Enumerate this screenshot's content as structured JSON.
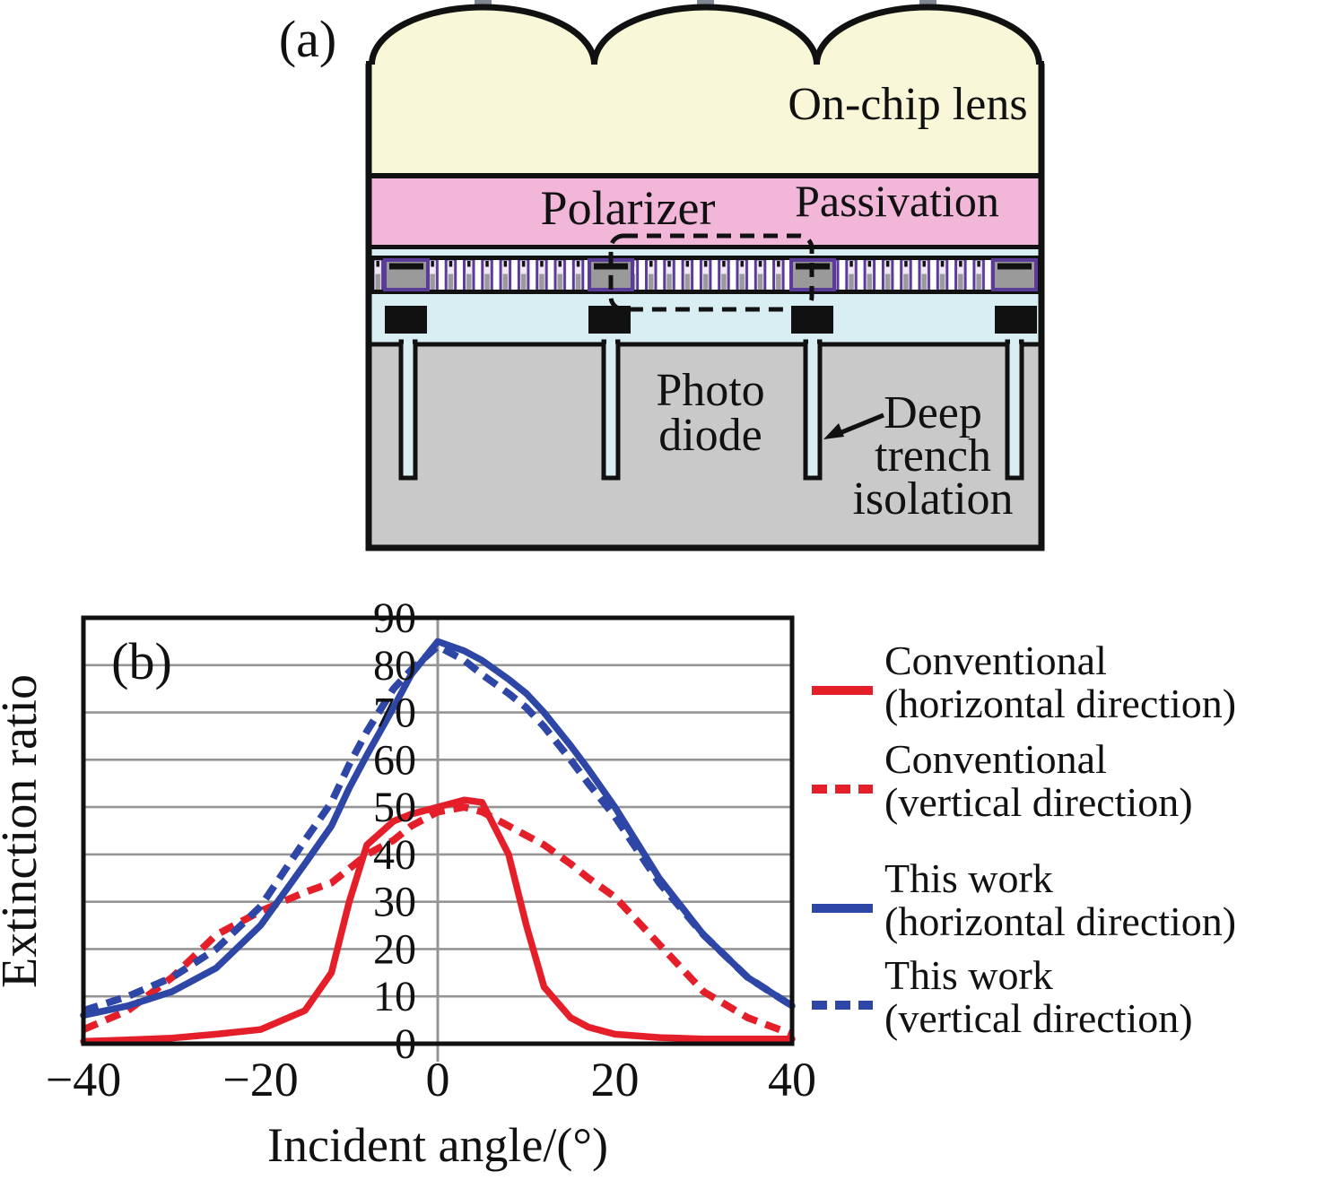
{
  "figure": {
    "panel_a": {
      "label": "(a)",
      "labels": {
        "on_chip_lens": "On-chip lens",
        "polarizer": "Polarizer",
        "passivation": "Passivation",
        "photo_diode_line1": "Photo",
        "photo_diode_line2": "diode",
        "dti_line1": "Deep",
        "dti_line2": "trench",
        "dti_line3": "isolation"
      },
      "colors": {
        "lens_yellow": "#f8f8d8",
        "passivation_pink": "#f2b6d9",
        "grating_purple": "#5a3b99",
        "oxide_cyan": "#d9eef2",
        "substrate_gray": "#c9c9c9",
        "contact_black": "#111111"
      }
    },
    "panel_b": {
      "label": "(b)"
    }
  },
  "chart_data": {
    "type": "line",
    "title": "",
    "xlabel": "Incident angle/(°)",
    "ylabel": "Extinction ratio",
    "xlim": [
      -40,
      40
    ],
    "ylim": [
      0,
      90
    ],
    "xticks": [
      -40,
      -20,
      0,
      20,
      40
    ],
    "xtick_labels": [
      "−40",
      "−20",
      "0",
      "20",
      "40"
    ],
    "yticks": [
      0,
      10,
      20,
      30,
      40,
      50,
      60,
      70,
      80,
      90
    ],
    "ytick_labels": [
      "0",
      "10",
      "20",
      "30",
      "40",
      "50",
      "60",
      "70",
      "80",
      "90"
    ],
    "grid": "horizontal gridlines every 10; vertical axis line at x=0",
    "legend_position": "right",
    "x": [
      -40,
      -35,
      -30,
      -25,
      -20,
      -15,
      -12,
      -10,
      -8,
      -5,
      -3,
      0,
      3,
      5,
      8,
      10,
      12,
      15,
      17,
      20,
      25,
      30,
      35,
      40
    ],
    "series": [
      {
        "name": "Conventional (horizontal direction)",
        "color": "#e41f2a",
        "style": "solid",
        "values": [
          0.5,
          0.8,
          1.2,
          2,
          3,
          7,
          15,
          30,
          42,
          47,
          48.5,
          50,
          51.5,
          51,
          40,
          25,
          12,
          5.5,
          3.5,
          2,
          1.3,
          1,
          1,
          1
        ]
      },
      {
        "name": "Conventional (vertical direction)",
        "color": "#e41f2a",
        "style": "dashed",
        "values": [
          3,
          7,
          14,
          23,
          28,
          32,
          34,
          37,
          40,
          43,
          46,
          49,
          50,
          49,
          46,
          44,
          42,
          38,
          35,
          31,
          21,
          11,
          5.5,
          2
        ]
      },
      {
        "name": "This work (horizontal direction)",
        "color": "#2e46a5",
        "style": "solid",
        "values": [
          6,
          8,
          11,
          16,
          25,
          38,
          46,
          54,
          61,
          71,
          78,
          85,
          83,
          81,
          77,
          74,
          70,
          63,
          58,
          50,
          35,
          23,
          14,
          8
        ]
      },
      {
        "name": "This work (vertical direction)",
        "color": "#2e46a5",
        "style": "dashed",
        "values": [
          7,
          10,
          14,
          20,
          29,
          43,
          51,
          59,
          66,
          75,
          79,
          84,
          81,
          78,
          74,
          71,
          67,
          60,
          55,
          48,
          34,
          23,
          14,
          8
        ]
      }
    ]
  },
  "legend": {
    "items": [
      {
        "line1": "Conventional",
        "line2": "(horizontal direction)",
        "color": "#e41f2a",
        "dasharray": "none"
      },
      {
        "line1": "Conventional",
        "line2": "(vertical direction)",
        "color": "#e41f2a",
        "dasharray": "17 9"
      },
      {
        "line1": "This work",
        "line2": "(horizontal direction)",
        "color": "#2e46a5",
        "dasharray": "none"
      },
      {
        "line1": "This work",
        "line2": "(vertical direction)",
        "color": "#2e46a5",
        "dasharray": "17 9"
      }
    ]
  }
}
